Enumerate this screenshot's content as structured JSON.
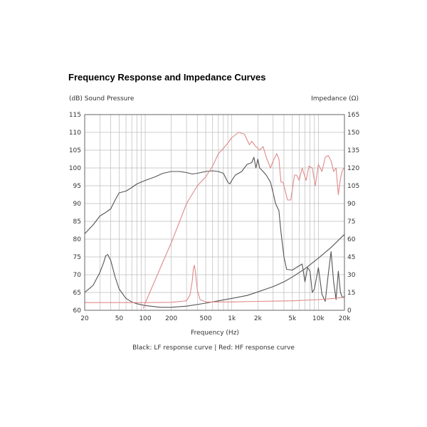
{
  "page": {
    "title": "Frequency Response and Impedance Curves"
  },
  "chart_data": {
    "type": "line",
    "title": "Frequency Response and Impedance Curves",
    "xlabel": "Frequency (Hz)",
    "ylabel_left": "(dB) Sound Pressure",
    "ylabel_right": "Impedance (Ω)",
    "x_scale": "log",
    "xlim": [
      20,
      20000
    ],
    "ylim_left": [
      60,
      115
    ],
    "ylim_right": [
      0,
      165
    ],
    "x_ticks": [
      {
        "value": 20,
        "label": "20"
      },
      {
        "value": 50,
        "label": "50"
      },
      {
        "value": 100,
        "label": "100"
      },
      {
        "value": 200,
        "label": "200"
      },
      {
        "value": 500,
        "label": "500"
      },
      {
        "value": 1000,
        "label": "1k"
      },
      {
        "value": 2000,
        "label": "2k"
      },
      {
        "value": 5000,
        "label": "5k"
      },
      {
        "value": 10000,
        "label": "10k"
      },
      {
        "value": 20000,
        "label": "20k"
      }
    ],
    "y_left_ticks": [
      "60",
      "65",
      "70",
      "75",
      "80",
      "85",
      "90",
      "95",
      "100",
      "105",
      "110",
      "115"
    ],
    "y_right_ticks": [
      "0",
      "15",
      "30",
      "45",
      "60",
      "75",
      "90",
      "105",
      "120",
      "135",
      "150",
      "165"
    ],
    "grid": true,
    "caption": "Black: LF response curve  |  Red: HF response curve",
    "colors": {
      "lf": "#555555",
      "hf": "#e08a8a",
      "grid": "#bbbbbb"
    },
    "series": [
      {
        "name": "LF sound pressure",
        "axis": "left",
        "color": "#555555",
        "points": [
          [
            20,
            81.5
          ],
          [
            25,
            84
          ],
          [
            30,
            86.5
          ],
          [
            35,
            87.5
          ],
          [
            40,
            88.5
          ],
          [
            45,
            91
          ],
          [
            50,
            93
          ],
          [
            60,
            93.5
          ],
          [
            70,
            94.5
          ],
          [
            80,
            95.5
          ],
          [
            100,
            96.5
          ],
          [
            130,
            97.5
          ],
          [
            160,
            98.5
          ],
          [
            200,
            99
          ],
          [
            250,
            99
          ],
          [
            300,
            98.7
          ],
          [
            350,
            98.3
          ],
          [
            400,
            98.5
          ],
          [
            500,
            99
          ],
          [
            600,
            99.2
          ],
          [
            700,
            99
          ],
          [
            800,
            98.5
          ],
          [
            900,
            96
          ],
          [
            950,
            95.5
          ],
          [
            1000,
            96.5
          ],
          [
            1100,
            98
          ],
          [
            1300,
            99
          ],
          [
            1500,
            101
          ],
          [
            1700,
            101.5
          ],
          [
            1800,
            103
          ],
          [
            1900,
            100
          ],
          [
            2000,
            102.5
          ],
          [
            2100,
            100
          ],
          [
            2300,
            99
          ],
          [
            2500,
            98
          ],
          [
            2800,
            96
          ],
          [
            3000,
            93
          ],
          [
            3200,
            90
          ],
          [
            3500,
            88
          ],
          [
            3700,
            82
          ],
          [
            4000,
            75
          ],
          [
            4300,
            71.5
          ],
          [
            5000,
            71.3
          ],
          [
            6000,
            72.5
          ],
          [
            6500,
            73
          ],
          [
            7000,
            68
          ],
          [
            7500,
            72
          ],
          [
            8000,
            71
          ],
          [
            8500,
            65
          ],
          [
            9000,
            66
          ],
          [
            10000,
            72
          ],
          [
            11000,
            64.5
          ],
          [
            12000,
            62.5
          ],
          [
            13000,
            70
          ],
          [
            14000,
            76.5
          ],
          [
            15000,
            68
          ],
          [
            16000,
            63
          ],
          [
            17000,
            71
          ],
          [
            18000,
            65
          ],
          [
            19000,
            63.5
          ],
          [
            20000,
            64
          ]
        ]
      },
      {
        "name": "LF impedance",
        "axis": "right",
        "color": "#555555",
        "points": [
          [
            20,
            15
          ],
          [
            25,
            21
          ],
          [
            30,
            32
          ],
          [
            33,
            40
          ],
          [
            35,
            46
          ],
          [
            37,
            47
          ],
          [
            40,
            42
          ],
          [
            45,
            28
          ],
          [
            50,
            18
          ],
          [
            60,
            10
          ],
          [
            70,
            7
          ],
          [
            80,
            5.5
          ],
          [
            100,
            4
          ],
          [
            150,
            2.5
          ],
          [
            200,
            2.5
          ],
          [
            300,
            3.5
          ],
          [
            500,
            6
          ],
          [
            700,
            8
          ],
          [
            1000,
            10
          ],
          [
            1500,
            12.5
          ],
          [
            2000,
            15.5
          ],
          [
            3000,
            20
          ],
          [
            4000,
            24
          ],
          [
            5000,
            28
          ],
          [
            7000,
            35
          ],
          [
            10000,
            44
          ],
          [
            14000,
            53
          ],
          [
            20000,
            64
          ]
        ]
      },
      {
        "name": "HF sound pressure",
        "axis": "left",
        "color": "#e08a8a",
        "points": [
          [
            95,
            60.5
          ],
          [
            100,
            62
          ],
          [
            120,
            66.5
          ],
          [
            150,
            72
          ],
          [
            200,
            79
          ],
          [
            250,
            85
          ],
          [
            300,
            90
          ],
          [
            400,
            95
          ],
          [
            500,
            97.5
          ],
          [
            600,
            100.5
          ],
          [
            700,
            104
          ],
          [
            800,
            105.5
          ],
          [
            900,
            107
          ],
          [
            1000,
            108.5
          ],
          [
            1200,
            110
          ],
          [
            1400,
            109.5
          ],
          [
            1600,
            106.5
          ],
          [
            1700,
            107.5
          ],
          [
            1900,
            106
          ],
          [
            2100,
            105
          ],
          [
            2300,
            106
          ],
          [
            2500,
            103
          ],
          [
            2800,
            100
          ],
          [
            3000,
            102
          ],
          [
            3300,
            104
          ],
          [
            3500,
            102.5
          ],
          [
            3700,
            96
          ],
          [
            3900,
            96
          ],
          [
            4100,
            94
          ],
          [
            4400,
            91
          ],
          [
            4800,
            91
          ],
          [
            5300,
            98
          ],
          [
            5600,
            98
          ],
          [
            6000,
            96.5
          ],
          [
            6500,
            100
          ],
          [
            7200,
            96.5
          ],
          [
            7800,
            100.5
          ],
          [
            8500,
            100
          ],
          [
            9200,
            95
          ],
          [
            10000,
            101
          ],
          [
            11000,
            99
          ],
          [
            12000,
            103
          ],
          [
            13000,
            103.5
          ],
          [
            14000,
            102
          ],
          [
            15000,
            99
          ],
          [
            16000,
            100
          ],
          [
            17000,
            92.5
          ],
          [
            18000,
            97
          ],
          [
            19000,
            99.5
          ],
          [
            20000,
            100
          ]
        ]
      },
      {
        "name": "HF impedance",
        "axis": "right",
        "color": "#e08a8a",
        "points": [
          [
            20,
            6.5
          ],
          [
            100,
            6.5
          ],
          [
            200,
            6.7
          ],
          [
            300,
            8
          ],
          [
            330,
            13
          ],
          [
            350,
            25
          ],
          [
            360,
            35
          ],
          [
            370,
            38
          ],
          [
            380,
            32
          ],
          [
            400,
            17
          ],
          [
            430,
            9
          ],
          [
            500,
            7
          ],
          [
            1000,
            7
          ],
          [
            2000,
            7.5
          ],
          [
            5000,
            8
          ],
          [
            10000,
            9
          ],
          [
            15000,
            10
          ],
          [
            20000,
            11
          ]
        ]
      }
    ]
  }
}
